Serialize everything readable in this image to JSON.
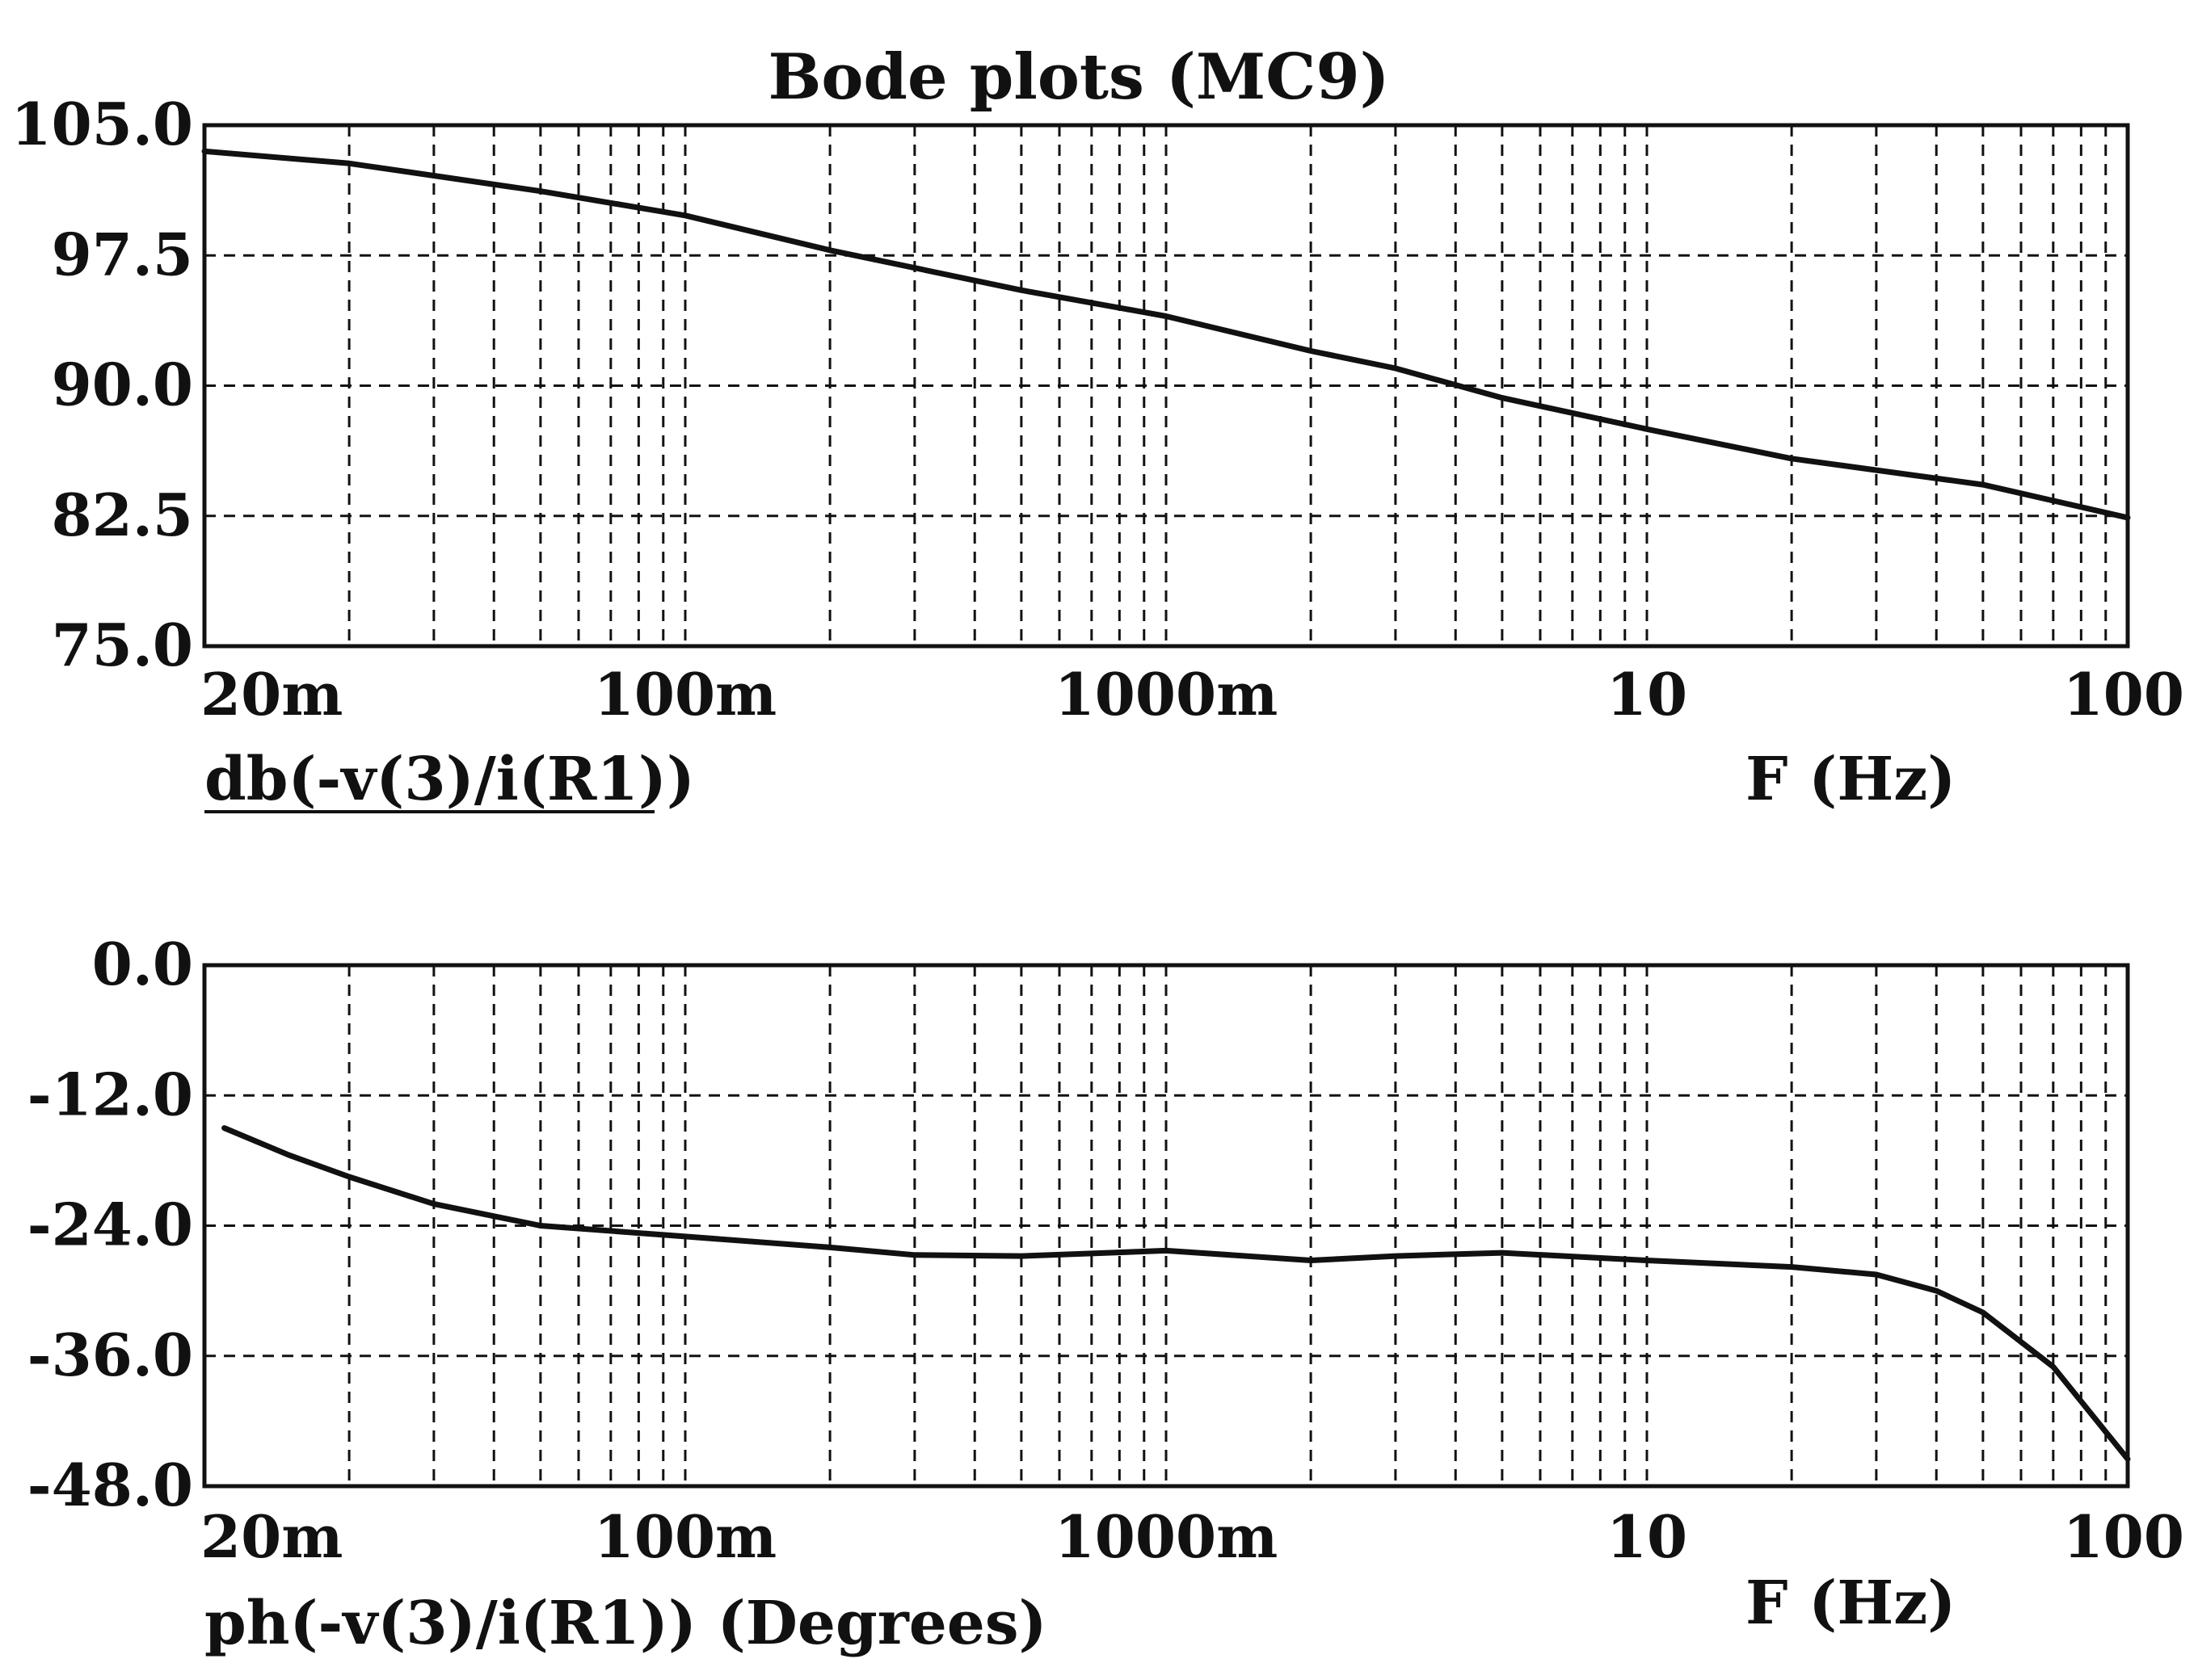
{
  "chart_data": [
    {
      "type": "line",
      "title": "Bode plots (MC9)",
      "xlabel": "F (Hz)",
      "ylabel": "db(-v(3)/i(R1))",
      "xscale": "log",
      "xlim": [
        0.01,
        100
      ],
      "ylim": [
        75.0,
        105.0
      ],
      "xtick_values": [
        0.02,
        0.1,
        1,
        10,
        100
      ],
      "xtick_labels": [
        "20m",
        "100m",
        "1000m",
        "10",
        "100"
      ],
      "ytick_values": [
        105.0,
        97.5,
        90.0,
        82.5,
        75.0
      ],
      "ytick_labels": [
        "105.0",
        "97.5",
        "90.0",
        "82.5",
        "75.0"
      ],
      "grid": true,
      "series": [
        {
          "name": "db(-v(3)/i(R1))",
          "x": [
            0.01,
            0.02,
            0.05,
            0.1,
            0.2,
            0.5,
            1,
            2,
            3,
            5,
            10,
            20,
            50,
            100
          ],
          "y": [
            103.5,
            102.8,
            101.2,
            99.8,
            97.8,
            95.5,
            94.0,
            92.0,
            91.0,
            89.3,
            87.5,
            85.8,
            84.3,
            82.4
          ]
        }
      ]
    },
    {
      "type": "line",
      "title": "",
      "xlabel": "F (Hz)",
      "ylabel": "ph(-v(3)/i(R1)) (Degrees)",
      "xscale": "log",
      "xlim": [
        0.01,
        100
      ],
      "ylim": [
        -48.0,
        0.0
      ],
      "xtick_values": [
        0.02,
        0.1,
        1,
        10,
        100
      ],
      "xtick_labels": [
        "20m",
        "100m",
        "1000m",
        "10",
        "100"
      ],
      "ytick_values": [
        0.0,
        -12.0,
        -24.0,
        -36.0,
        -48.0
      ],
      "ytick_labels": [
        "0.0",
        "-12.0",
        "-24.0",
        "-36.0",
        "-48.0"
      ],
      "grid": true,
      "series": [
        {
          "name": "ph(-v(3)/i(R1))",
          "x": [
            0.011,
            0.015,
            0.02,
            0.03,
            0.05,
            0.1,
            0.2,
            0.3,
            0.5,
            1,
            2,
            3,
            5,
            10,
            20,
            30,
            40,
            50,
            70,
            100
          ],
          "y": [
            -15.0,
            -17.5,
            -19.5,
            -22.0,
            -24.0,
            -25.0,
            -26.0,
            -26.7,
            -26.8,
            -26.3,
            -27.2,
            -26.8,
            -26.5,
            -27.2,
            -27.8,
            -28.5,
            -30.0,
            -32.0,
            -37.0,
            -45.5
          ]
        }
      ]
    }
  ]
}
